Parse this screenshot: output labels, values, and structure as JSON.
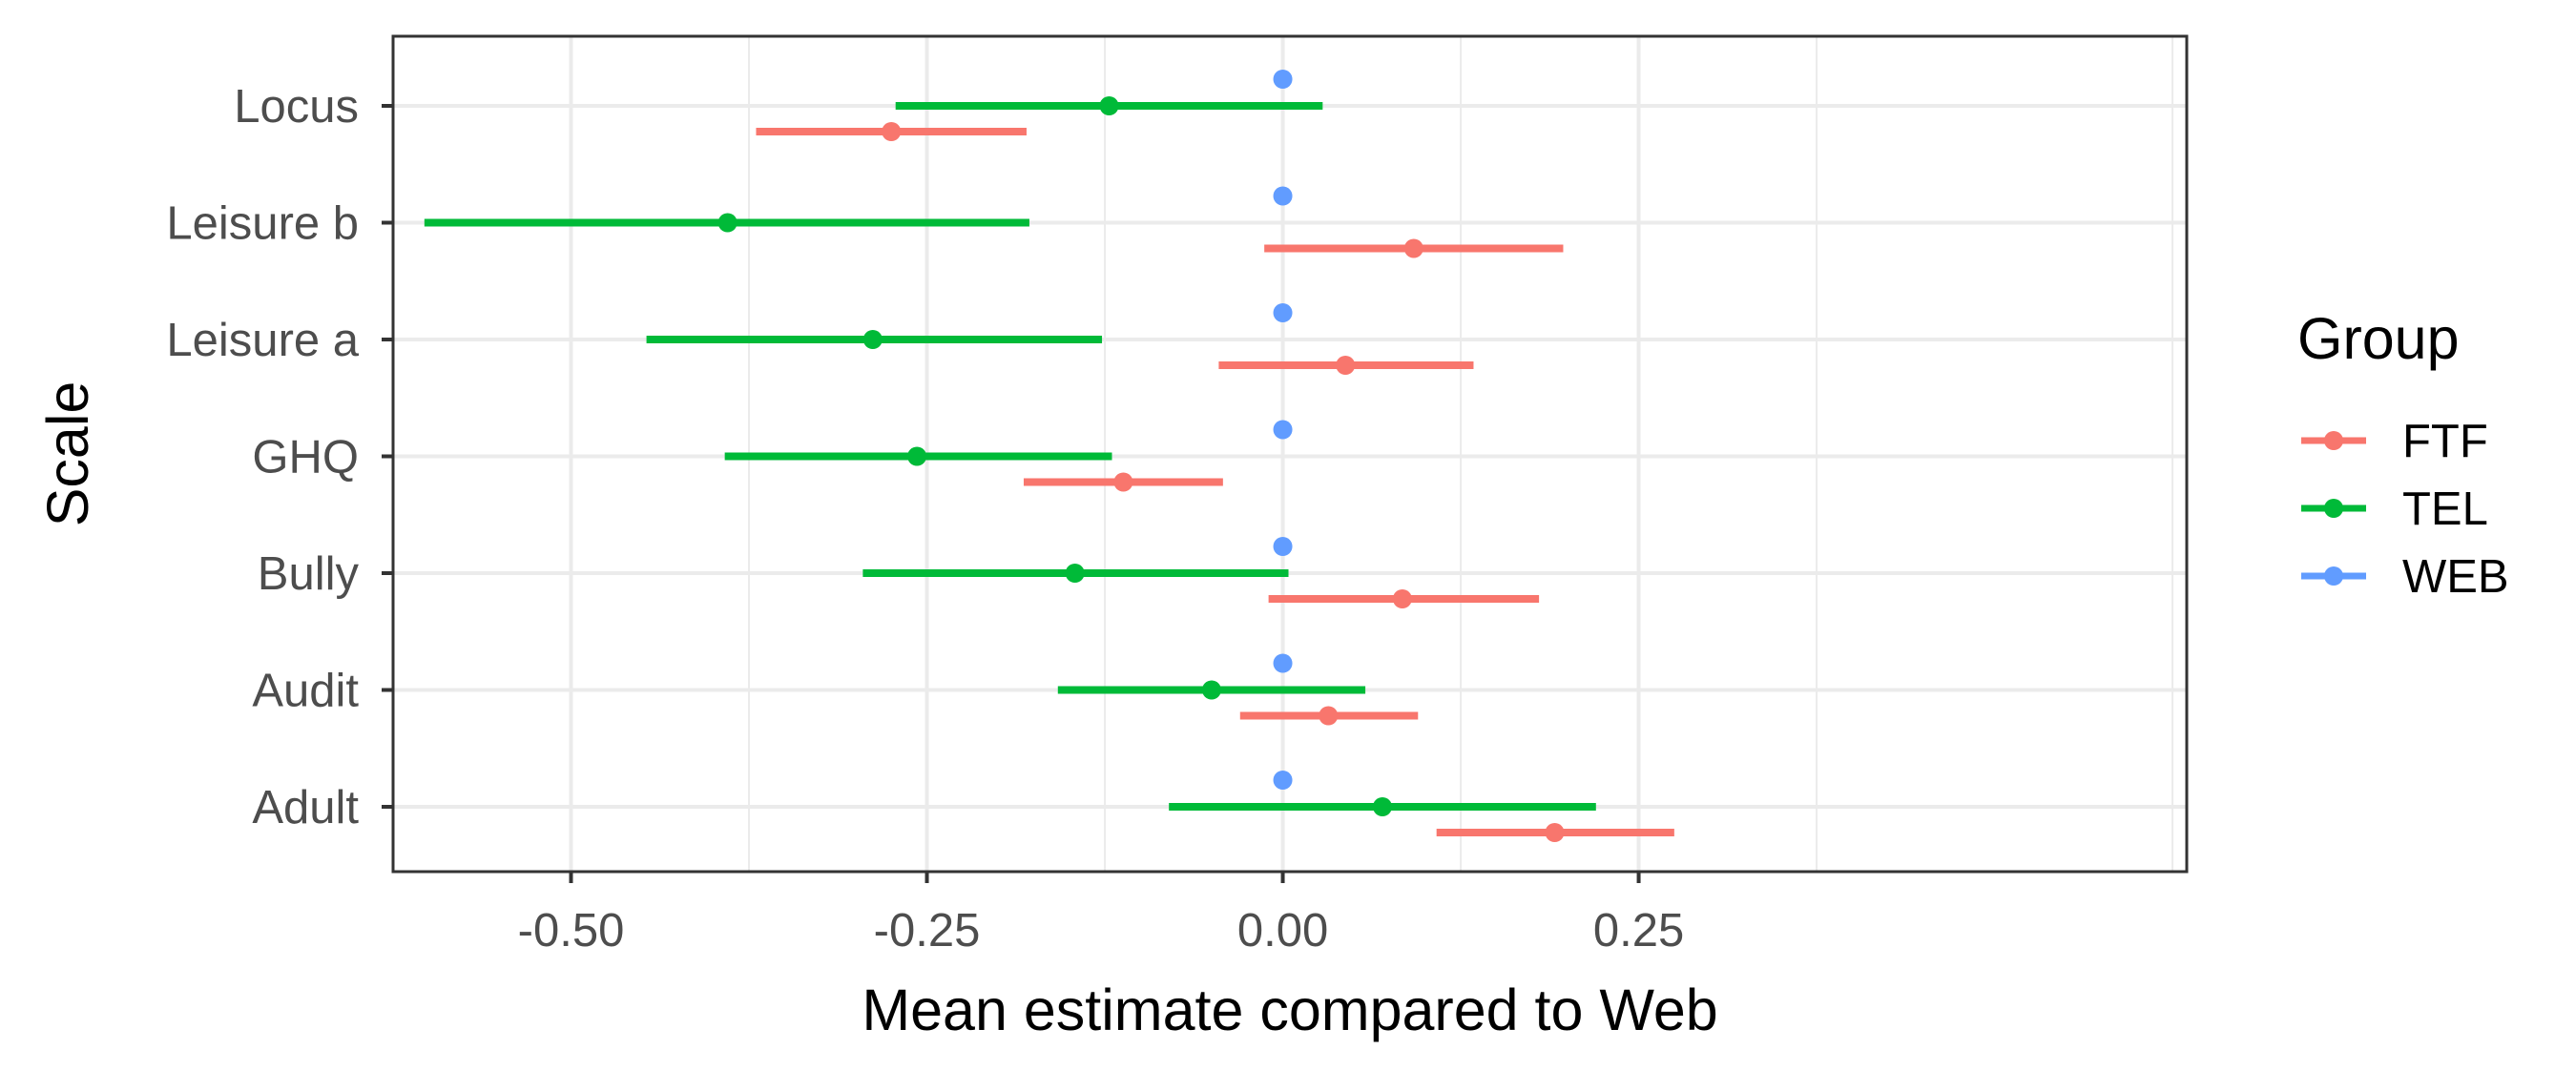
{
  "chart_data": {
    "type": "forest",
    "xlabel": "Mean estimate compared to Web",
    "ylabel": "Scale",
    "xlim": [
      -0.625,
      0.635
    ],
    "x_ticks": [
      -0.5,
      -0.25,
      0.0,
      0.25
    ],
    "x_tick_labels": [
      "-0.50",
      "-0.25",
      "0.00",
      "0.25"
    ],
    "categories": [
      "Locus",
      "Leisure b",
      "Leisure a",
      "GHQ",
      "Bully",
      "Audit",
      "Adult"
    ],
    "grid": true,
    "legend": {
      "title": "Group",
      "position": "right"
    },
    "series": [
      {
        "name": "FTF",
        "color": "#F8766D",
        "points": [
          {
            "category": "Locus",
            "estimate": -0.275,
            "low": -0.37,
            "high": -0.18
          },
          {
            "category": "Leisure b",
            "estimate": 0.092,
            "low": -0.013,
            "high": 0.197
          },
          {
            "category": "Leisure a",
            "estimate": 0.044,
            "low": -0.045,
            "high": 0.134
          },
          {
            "category": "GHQ",
            "estimate": -0.112,
            "low": -0.182,
            "high": -0.042
          },
          {
            "category": "Bully",
            "estimate": 0.084,
            "low": -0.01,
            "high": 0.18
          },
          {
            "category": "Audit",
            "estimate": 0.032,
            "low": -0.03,
            "high": 0.095
          },
          {
            "category": "Adult",
            "estimate": 0.191,
            "low": 0.108,
            "high": 0.275
          }
        ]
      },
      {
        "name": "TEL",
        "color": "#00BA38",
        "points": [
          {
            "category": "Locus",
            "estimate": -0.122,
            "low": -0.272,
            "high": 0.028
          },
          {
            "category": "Leisure b",
            "estimate": -0.39,
            "low": -0.603,
            "high": -0.178
          },
          {
            "category": "Leisure a",
            "estimate": -0.288,
            "low": -0.447,
            "high": -0.127
          },
          {
            "category": "GHQ",
            "estimate": -0.257,
            "low": -0.392,
            "high": -0.12
          },
          {
            "category": "Bully",
            "estimate": -0.146,
            "low": -0.295,
            "high": 0.004
          },
          {
            "category": "Audit",
            "estimate": -0.05,
            "low": -0.158,
            "high": 0.058
          },
          {
            "category": "Adult",
            "estimate": 0.07,
            "low": -0.08,
            "high": 0.22
          }
        ]
      },
      {
        "name": "WEB",
        "color": "#619CFF",
        "points": [
          {
            "category": "Locus",
            "estimate": 0.0,
            "low": 0.0,
            "high": 0.0
          },
          {
            "category": "Leisure b",
            "estimate": 0.0,
            "low": 0.0,
            "high": 0.0
          },
          {
            "category": "Leisure a",
            "estimate": 0.0,
            "low": 0.0,
            "high": 0.0
          },
          {
            "category": "GHQ",
            "estimate": 0.0,
            "low": 0.0,
            "high": 0.0
          },
          {
            "category": "Bully",
            "estimate": 0.0,
            "low": 0.0,
            "high": 0.0
          },
          {
            "category": "Audit",
            "estimate": 0.0,
            "low": 0.0,
            "high": 0.0
          },
          {
            "category": "Adult",
            "estimate": 0.0,
            "low": 0.0,
            "high": 0.0
          }
        ]
      }
    ]
  }
}
